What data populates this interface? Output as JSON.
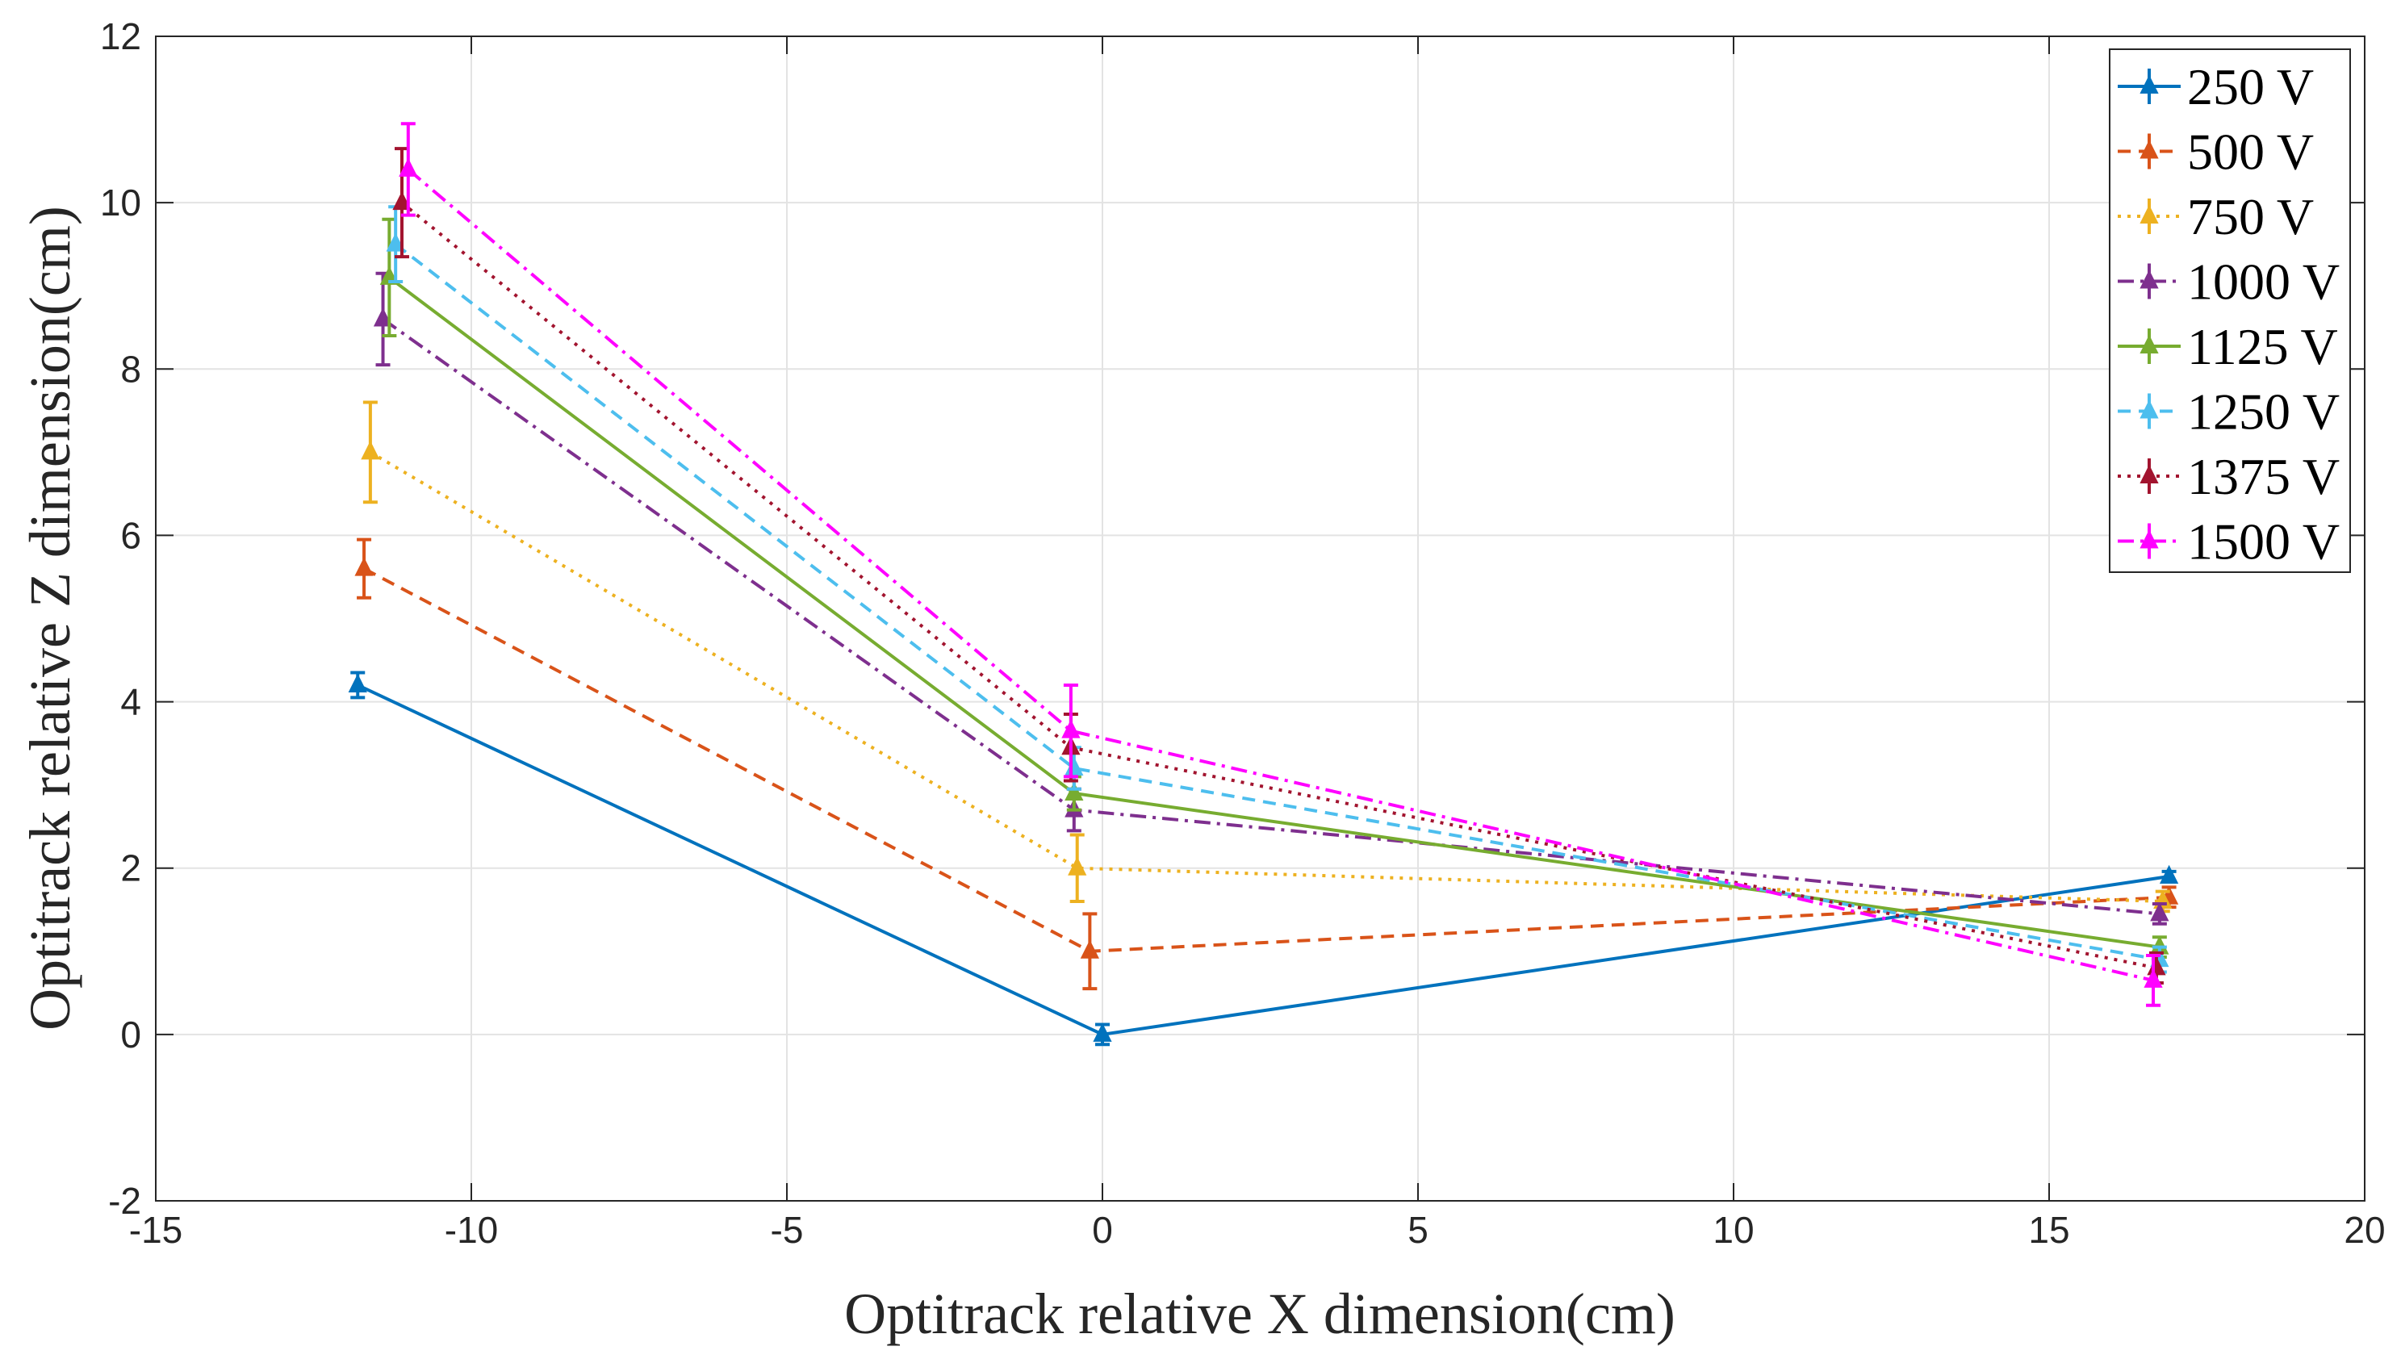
{
  "chart_data": {
    "type": "line",
    "xlabel": "Optitrack relative X dimension(cm)",
    "ylabel": "Optitrack relative Z dimension(cm)",
    "xlim": [
      -15,
      20
    ],
    "ylim": [
      -2,
      12
    ],
    "xticks": [
      -15,
      -10,
      -5,
      0,
      5,
      10,
      15,
      20
    ],
    "yticks": [
      -2,
      0,
      2,
      4,
      6,
      8,
      10,
      12
    ],
    "xtick_labels": [
      "-15",
      "-10",
      "-5",
      "0",
      "5",
      "10",
      "15",
      "20"
    ],
    "ytick_labels": [
      "-2",
      "0",
      "2",
      "4",
      "6",
      "8",
      "10",
      "12"
    ],
    "grid": true,
    "legend_position": "top-right",
    "series": [
      {
        "name": "250 V",
        "color": "#0072BD",
        "dash": "solid",
        "x": [
          -11.8,
          0.0,
          16.9
        ],
        "y": [
          4.2,
          0.0,
          1.9
        ],
        "err": [
          0.15,
          0.12,
          0.06
        ]
      },
      {
        "name": "500 V",
        "color": "#D95319",
        "dash": "dashed",
        "x": [
          -11.7,
          -0.2,
          16.9
        ],
        "y": [
          5.6,
          1.0,
          1.65
        ],
        "err": [
          0.35,
          0.45,
          0.12
        ]
      },
      {
        "name": "750 V",
        "color": "#EDB120",
        "dash": "dotted",
        "x": [
          -11.6,
          -0.4,
          16.8
        ],
        "y": [
          7.0,
          2.0,
          1.6
        ],
        "err": [
          0.6,
          0.4,
          0.12
        ]
      },
      {
        "name": "1000 V",
        "color": "#7E2F8E",
        "dash": "dashdot",
        "x": [
          -11.4,
          -0.45,
          16.75
        ],
        "y": [
          8.6,
          2.7,
          1.45
        ],
        "err": [
          0.55,
          0.25,
          0.12
        ]
      },
      {
        "name": "1125 V",
        "color": "#77AC30",
        "dash": "solid",
        "x": [
          -11.3,
          -0.45,
          16.75
        ],
        "y": [
          9.1,
          2.9,
          1.05
        ],
        "err": [
          0.7,
          0.2,
          0.12
        ]
      },
      {
        "name": "1250 V",
        "color": "#4DBEEE",
        "dash": "dashed",
        "x": [
          -11.2,
          -0.45,
          16.75
        ],
        "y": [
          9.5,
          3.2,
          0.9
        ],
        "err": [
          0.45,
          0.25,
          0.15
        ]
      },
      {
        "name": "1375 V",
        "color": "#A2142F",
        "dash": "dotted",
        "x": [
          -11.1,
          -0.5,
          16.7
        ],
        "y": [
          10.0,
          3.45,
          0.8
        ],
        "err": [
          0.65,
          0.4,
          0.18
        ]
      },
      {
        "name": "1500 V",
        "color": "#FF00FF",
        "dash": "dashdot",
        "x": [
          -11.0,
          -0.5,
          16.65
        ],
        "y": [
          10.4,
          3.65,
          0.65
        ],
        "err": [
          0.55,
          0.55,
          0.3
        ]
      }
    ]
  }
}
